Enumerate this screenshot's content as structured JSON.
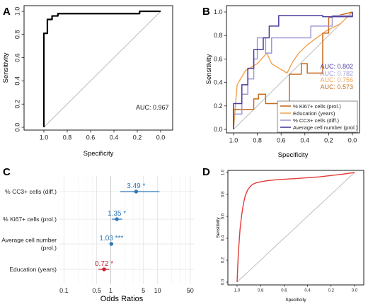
{
  "figure": {
    "panels": {
      "A": {
        "letter": "A"
      },
      "B": {
        "letter": "B"
      },
      "C": {
        "letter": "C"
      },
      "D": {
        "letter": "D"
      }
    }
  },
  "chart_data": [
    {
      "panel": "A",
      "type": "line",
      "xlabel": "Specificity",
      "ylabel": "Sensitivity",
      "x_reversed": true,
      "xlim": [
        1.0,
        0.0
      ],
      "ylim": [
        0.0,
        1.0
      ],
      "xticks": [
        "1.0",
        "0.8",
        "0.6",
        "0.4",
        "0.2",
        "0.0"
      ],
      "yticks": [
        "0.0",
        "0.2",
        "0.4",
        "0.6",
        "0.8",
        "1.0"
      ],
      "grid": false,
      "diagonal": true,
      "annotation": "AUC: 0.967",
      "series": [
        {
          "color": "#000000",
          "x": [
            1.0,
            1.0,
            0.97,
            0.97,
            0.93,
            0.93,
            0.88,
            0.88,
            0.18,
            0.18,
            0.0
          ],
          "y": [
            0.0,
            0.81,
            0.81,
            0.93,
            0.93,
            0.96,
            0.96,
            0.98,
            0.98,
            1.0,
            1.0
          ]
        }
      ]
    },
    {
      "panel": "B",
      "type": "line",
      "xlabel": "Specificity",
      "ylabel": "Sensitivity",
      "x_reversed": true,
      "xlim": [
        1.0,
        0.0
      ],
      "ylim": [
        0.0,
        1.0
      ],
      "xticks": [
        "1.0",
        "0.8",
        "0.6",
        "0.4",
        "0.2",
        "0.0"
      ],
      "yticks": [
        "0.0",
        "0.2",
        "0.4",
        "0.6",
        "0.8",
        "1.0"
      ],
      "grid": false,
      "diagonal": true,
      "legend_position": "bottom-right",
      "auc_labels": [
        {
          "text": "AUC: 0.802",
          "color": "#4b3a9b"
        },
        {
          "text": "AUC: 0.782",
          "color": "#9f99d4"
        },
        {
          "text": "AUC: 0.756",
          "color": "#f2a65a"
        },
        {
          "text": "AUC: 0.573",
          "color": "#c86b1d"
        }
      ],
      "series": [
        {
          "name": "% Ki67+ cells (prol.)",
          "color": "#c86b1d",
          "x": [
            1.0,
            1.0,
            0.83,
            0.83,
            0.79,
            0.79,
            0.73,
            0.73,
            0.53,
            0.53,
            0.43,
            0.43,
            0.38,
            0.38,
            0.25,
            0.25,
            0.2,
            0.2,
            0.0
          ],
          "y": [
            0.0,
            0.17,
            0.17,
            0.26,
            0.26,
            0.3,
            0.3,
            0.22,
            0.22,
            0.47,
            0.47,
            0.56,
            0.56,
            0.48,
            0.48,
            0.82,
            0.82,
            0.95,
            1.0
          ]
        },
        {
          "name": "Education (years)",
          "color": "#f2a65a",
          "x": [
            1.0,
            0.97,
            0.9,
            0.8,
            0.72,
            0.68,
            0.55,
            0.5,
            0.45,
            0.38,
            0.3,
            0.22,
            0.1,
            0.0
          ],
          "y": [
            0.0,
            0.38,
            0.5,
            0.56,
            0.65,
            0.56,
            0.48,
            0.58,
            0.65,
            0.72,
            0.78,
            0.84,
            0.9,
            1.0
          ]
        },
        {
          "name": "% CC3+ cells (diff.)",
          "color": "#9f99d4",
          "x": [
            1.0,
            1.0,
            0.93,
            0.93,
            0.88,
            0.88,
            0.83,
            0.83,
            0.8,
            0.8,
            0.73,
            0.73,
            0.68,
            0.68,
            0.35,
            0.35,
            0.17,
            0.17,
            0.0,
            0.0
          ],
          "y": [
            0.0,
            0.13,
            0.13,
            0.3,
            0.3,
            0.43,
            0.43,
            0.6,
            0.6,
            0.78,
            0.78,
            0.65,
            0.65,
            0.78,
            0.78,
            0.88,
            0.88,
            0.97,
            0.97,
            1.0
          ]
        },
        {
          "name": "Average cell number (prol.)",
          "color": "#4b3a9b",
          "x": [
            1.0,
            1.0,
            0.93,
            0.93,
            0.88,
            0.88,
            0.83,
            0.83,
            0.75,
            0.75,
            0.7,
            0.7,
            0.62,
            0.62,
            0.25,
            0.25,
            0.0,
            0.0
          ],
          "y": [
            0.0,
            0.22,
            0.22,
            0.38,
            0.38,
            0.52,
            0.52,
            0.68,
            0.68,
            0.78,
            0.78,
            0.88,
            0.88,
            0.97,
            0.97,
            0.96,
            0.96,
            1.0
          ]
        }
      ]
    },
    {
      "panel": "C",
      "type": "scatter",
      "xlabel": "Odds Ratios",
      "x_scale": "log",
      "xlim": [
        0.08,
        60
      ],
      "xticks": [
        0.1,
        0.5,
        1,
        5,
        10,
        50
      ],
      "xtick_labels": [
        "0.1",
        "0.5",
        "1",
        "5",
        "10",
        "50"
      ],
      "grid": true,
      "reference_line": 1,
      "categories": [
        "% CC3+ cells (diff.)",
        "% Ki67+ cells (prol.)",
        "Average cell number (prol.)",
        "Education (years)"
      ],
      "category_display": [
        [
          "% CC3+ cells (diff.)"
        ],
        [
          "% Ki67+ cells (prol.)"
        ],
        [
          "Average cell number",
          "(prol.)"
        ],
        [
          "Education (years)"
        ]
      ],
      "series": [
        {
          "estimates": [
            3.49,
            1.35,
            1.03,
            0.72
          ],
          "ci_low": [
            1.6,
            1.05,
            1.01,
            0.55
          ],
          "ci_high": [
            11.0,
            1.75,
            1.05,
            0.93
          ],
          "labels": [
            "3.49 *",
            "1.35 *",
            "1.03 ***",
            "0.72 *"
          ],
          "colors": [
            "#2e78b8",
            "#2e78b8",
            "#2e78b8",
            "#c8202b"
          ]
        }
      ]
    },
    {
      "panel": "D",
      "type": "line",
      "xlabel": "Specificity",
      "ylabel": "Sensitivity",
      "x_reversed": true,
      "xlim": [
        1.0,
        0.0
      ],
      "ylim": [
        0.0,
        1.0
      ],
      "xticks": [
        "1.0",
        "0.8",
        "0.6",
        "0.4",
        "0.2",
        "0.0"
      ],
      "yticks": [
        "0.0",
        "0.2",
        "0.4",
        "0.6",
        "0.8",
        "1.0"
      ],
      "grid": false,
      "diagonal": true,
      "series": [
        {
          "color": "#e53935",
          "x": [
            1.0,
            0.99,
            0.975,
            0.96,
            0.945,
            0.93,
            0.91,
            0.89,
            0.87,
            0.84,
            0.8,
            0.75,
            0.65,
            0.5,
            0.3,
            0.1,
            0.0
          ],
          "y": [
            0.0,
            0.25,
            0.48,
            0.62,
            0.72,
            0.79,
            0.84,
            0.87,
            0.89,
            0.905,
            0.915,
            0.925,
            0.935,
            0.945,
            0.96,
            0.985,
            1.0
          ]
        }
      ]
    }
  ]
}
